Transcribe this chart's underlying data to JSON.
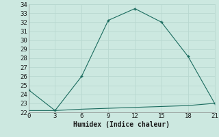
{
  "xlabel": "Humidex (Indice chaleur)",
  "x_main": [
    0,
    3,
    6,
    9,
    12,
    15,
    18,
    21
  ],
  "y_main": [
    24.5,
    22.2,
    26.0,
    32.2,
    33.5,
    32.0,
    28.2,
    23.0
  ],
  "x_flat": [
    0,
    3,
    6,
    9,
    12,
    15,
    18,
    21
  ],
  "y_flat": [
    22.2,
    22.2,
    22.35,
    22.45,
    22.55,
    22.65,
    22.75,
    23.0
  ],
  "line_color": "#1a6b5e",
  "marker_style": "P",
  "marker_size": 3,
  "xlim": [
    0,
    21
  ],
  "ylim": [
    22,
    34
  ],
  "xticks": [
    0,
    3,
    6,
    9,
    12,
    15,
    18,
    21
  ],
  "yticks": [
    22,
    23,
    24,
    25,
    26,
    27,
    28,
    29,
    30,
    31,
    32,
    33,
    34
  ],
  "bg_color": "#cce8e0",
  "grid_color": "#b8d8d0",
  "font_color": "#1a1a1a",
  "xlabel_fontsize": 7,
  "tick_fontsize": 6.5
}
